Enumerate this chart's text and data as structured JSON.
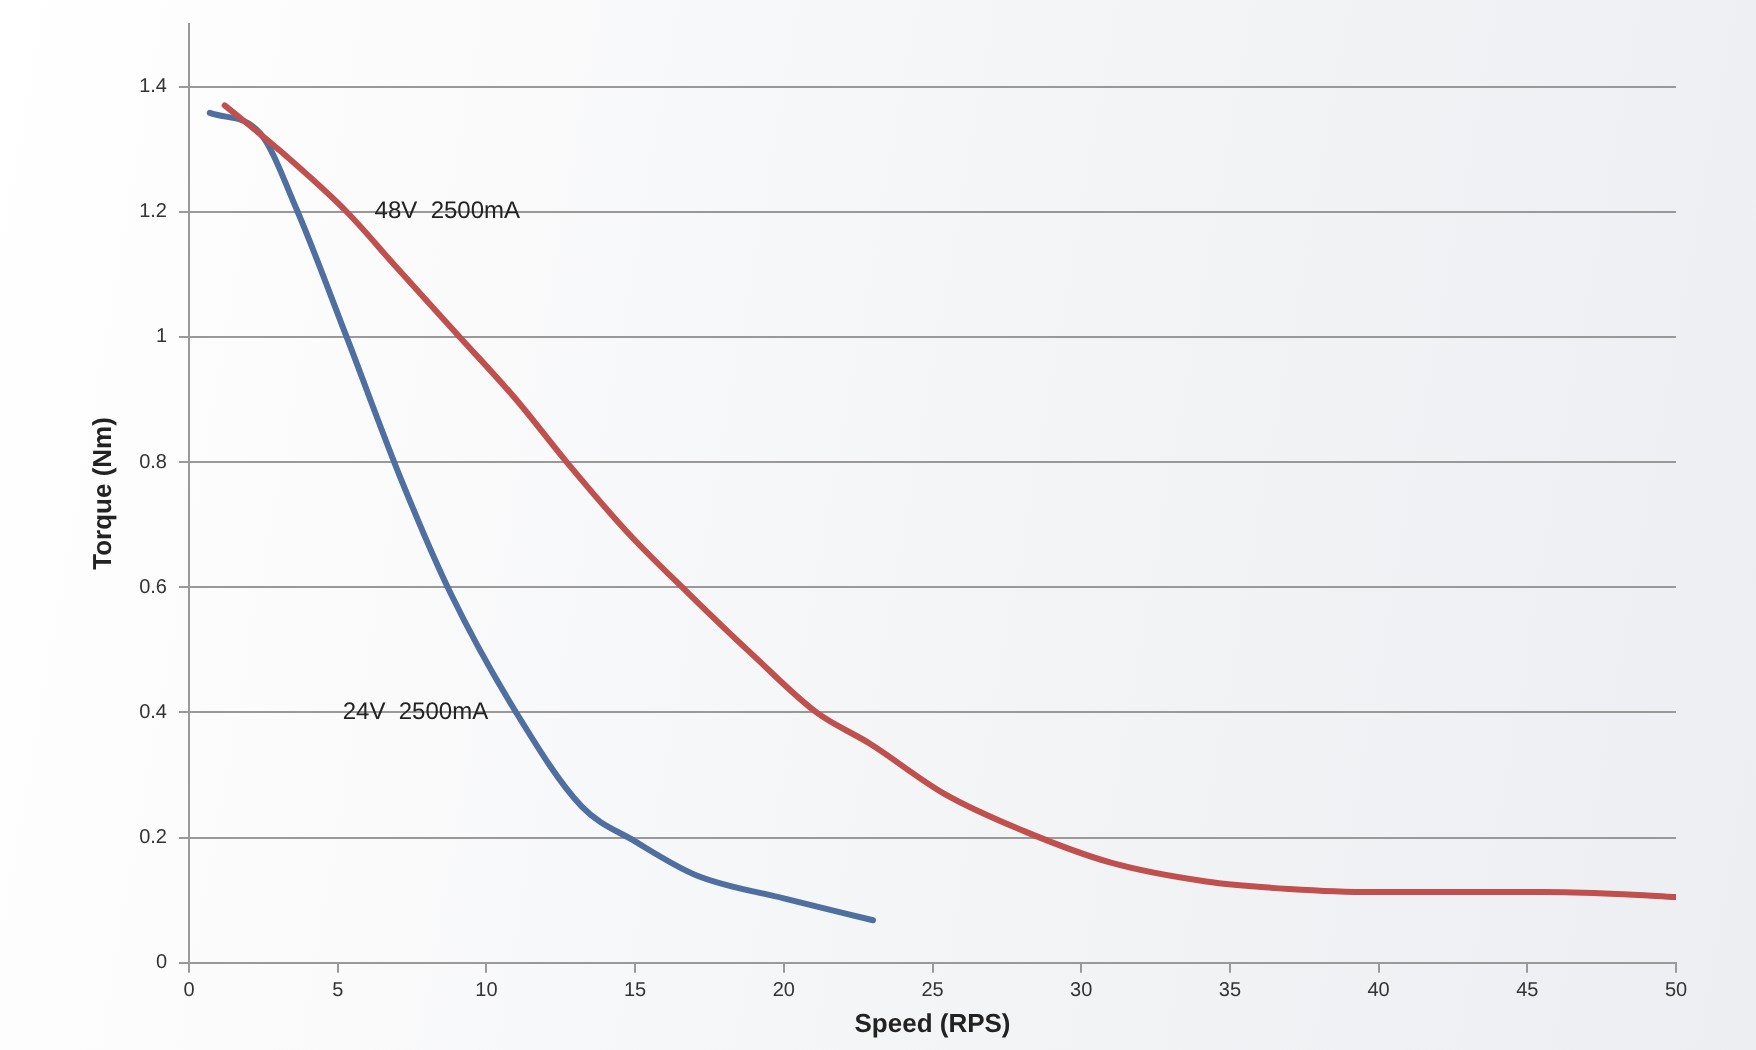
{
  "chart_data": {
    "type": "line",
    "xlabel": "Speed (RPS)",
    "ylabel": "Torque (Nm)",
    "xlim": [
      0,
      50
    ],
    "xticks": [
      0,
      5,
      10,
      15,
      20,
      25,
      30,
      35,
      40,
      45,
      50
    ],
    "ylim": [
      0,
      1.5
    ],
    "yticks": [
      0,
      0.2,
      0.4,
      0.6,
      0.8,
      1,
      1.2,
      1.4
    ],
    "grid": "y",
    "legend": false,
    "marker": "none",
    "line_style": "solid",
    "series": [
      {
        "name": "48V  2500mA",
        "color": "#c0504d",
        "x": [
          1.2,
          3,
          5.3,
          7,
          9.1,
          11,
          12.7,
          14.7,
          16.8,
          19,
          21.1,
          22.9,
          25.4,
          28.1,
          31,
          34.2,
          37,
          39.8,
          42.5,
          45.5,
          48,
          50
        ],
        "values": [
          1.37,
          1.3,
          1.2,
          1.11,
          1.0,
          0.9,
          0.8,
          0.69,
          0.59,
          0.49,
          0.4,
          0.35,
          0.27,
          0.21,
          0.16,
          0.13,
          0.118,
          0.113,
          0.113,
          0.113,
          0.11,
          0.105
        ]
      },
      {
        "name": "24V  2500mA",
        "color": "#4f6fa0",
        "x": [
          0.7,
          2.4,
          3.6,
          5.3,
          7.1,
          8.8,
          11,
          13.2,
          15,
          17.05,
          20,
          23
        ],
        "values": [
          1.358,
          1.325,
          1.206,
          1.0,
          0.776,
          0.59,
          0.4,
          0.25,
          0.194,
          0.14,
          0.103,
          0.068
        ]
      }
    ]
  }
}
